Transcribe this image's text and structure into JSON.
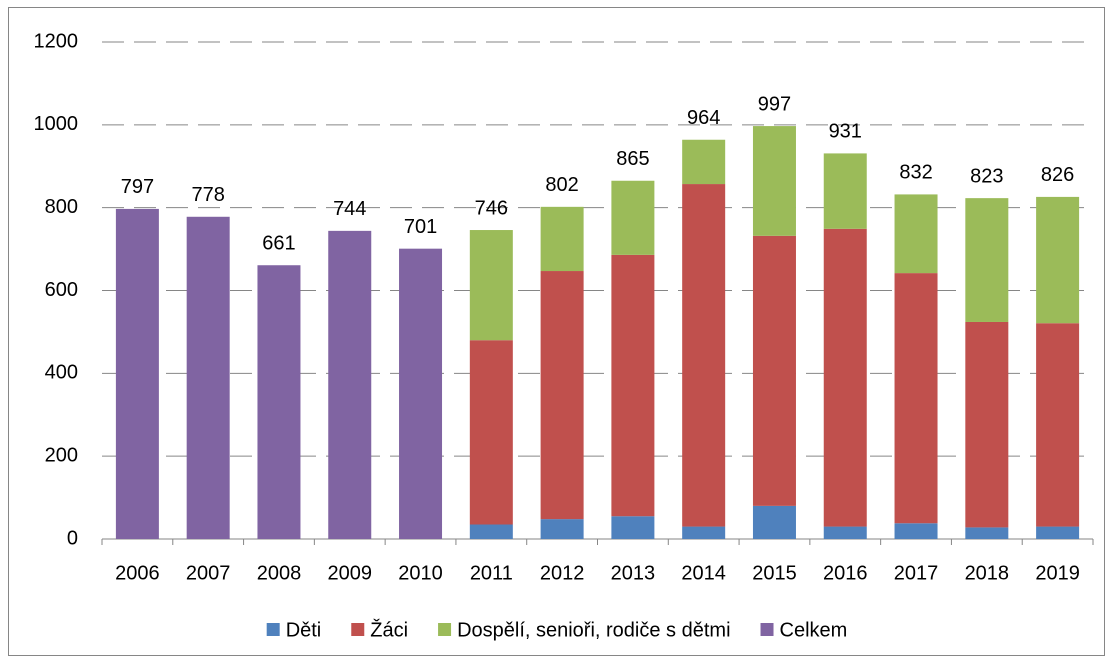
{
  "chart_data": {
    "type": "stacked_bar",
    "categories": [
      "2006",
      "2007",
      "2008",
      "2009",
      "2010",
      "2011",
      "2012",
      "2013",
      "2014",
      "2015",
      "2016",
      "2017",
      "2018",
      "2019"
    ],
    "series": [
      {
        "name": "Děti",
        "color": "#4f81bd",
        "values": [
          null,
          null,
          null,
          null,
          null,
          35,
          48,
          55,
          30,
          80,
          30,
          38,
          28,
          30
        ]
      },
      {
        "name": "Žáci",
        "color": "#c0504d",
        "values": [
          null,
          null,
          null,
          null,
          null,
          445,
          599,
          631,
          827,
          652,
          719,
          604,
          496,
          491
        ]
      },
      {
        "name": "Dospělí, senioři, rodiče s dětmi",
        "color": "#9bbb59",
        "values": [
          null,
          null,
          null,
          null,
          null,
          266,
          155,
          179,
          107,
          265,
          182,
          190,
          299,
          305
        ]
      },
      {
        "name": "Celkem",
        "color": "#8064a2",
        "values": [
          797,
          778,
          661,
          744,
          701,
          null,
          null,
          null,
          null,
          null,
          null,
          null,
          null,
          null
        ]
      }
    ],
    "totals": [
      797,
      778,
      661,
      744,
      701,
      746,
      802,
      865,
      964,
      997,
      931,
      832,
      823,
      826
    ],
    "ylim": [
      0,
      1200
    ],
    "yticks": [
      0,
      200,
      400,
      600,
      800,
      1000,
      1200
    ],
    "grid": true,
    "legend": "bottom"
  }
}
